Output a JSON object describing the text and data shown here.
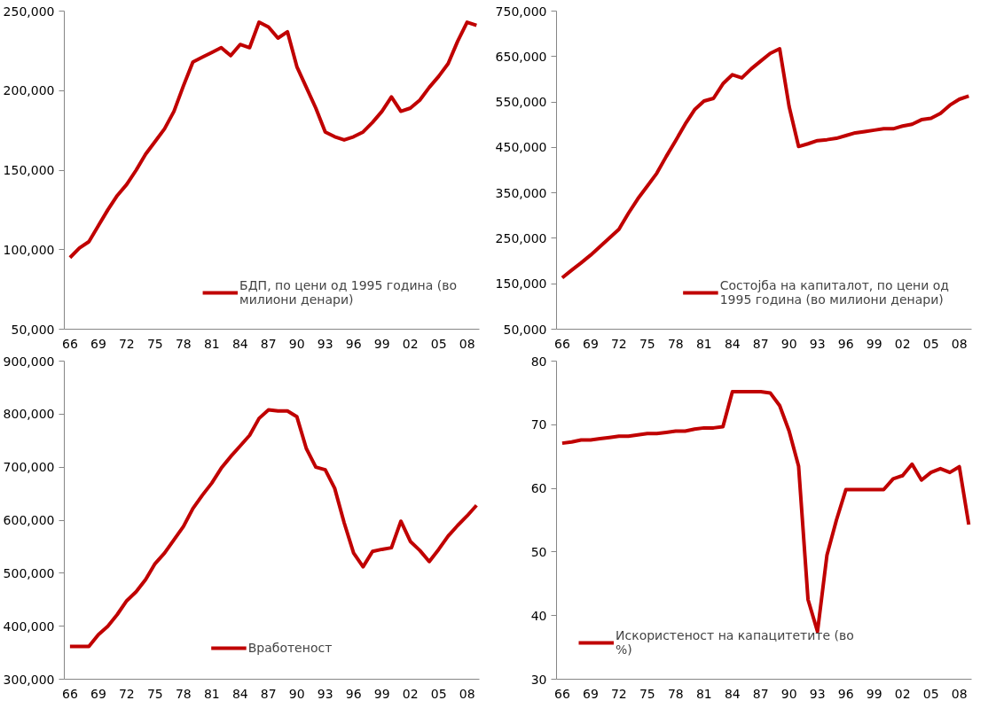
{
  "chart_data": [
    {
      "type": "line",
      "categories": [
        "66",
        null,
        null,
        "69",
        null,
        null,
        "72",
        null,
        null,
        "75",
        null,
        null,
        "78",
        null,
        null,
        "81",
        null,
        null,
        "84",
        null,
        null,
        "87",
        null,
        null,
        "90",
        null,
        null,
        "93",
        null,
        null,
        "96",
        null,
        null,
        "99",
        null,
        null,
        "02",
        null,
        null,
        "05",
        null,
        null,
        "08",
        null
      ],
      "series": [
        {
          "name": "БДП, по цени од 1995 година (во милиони денари)",
          "color": "#c00000",
          "values": [
            95000,
            101000,
            105000,
            115000,
            125000,
            134000,
            141000,
            150000,
            160000,
            168000,
            176000,
            187000,
            203000,
            218000,
            221000,
            224000,
            227000,
            222000,
            229000,
            227000,
            243000,
            240000,
            233000,
            237000,
            215000,
            202000,
            189000,
            174000,
            171000,
            169000,
            171000,
            174000,
            180000,
            187000,
            196000,
            187000,
            189000,
            194000,
            202000,
            209000,
            217000,
            231000,
            243000,
            241000
          ]
        }
      ],
      "ylim": [
        50000,
        250000
      ],
      "yticks": [
        {
          "value": 50000,
          "label": "50,000"
        },
        {
          "value": 100000,
          "label": "100,000"
        },
        {
          "value": 150000,
          "label": "150,000"
        },
        {
          "value": 200000,
          "label": "200,000"
        },
        {
          "value": 250000,
          "label": "250,000"
        }
      ],
      "legend": "bottom right",
      "line_style": "solid"
    },
    {
      "type": "line",
      "categories": [
        "66",
        null,
        null,
        "69",
        null,
        null,
        "72",
        null,
        null,
        "75",
        null,
        null,
        "78",
        null,
        null,
        "81",
        null,
        null,
        "84",
        null,
        null,
        "87",
        null,
        null,
        "90",
        null,
        null,
        "93",
        null,
        null,
        "96",
        null,
        null,
        "99",
        null,
        null,
        "02",
        null,
        null,
        "05",
        null,
        null,
        "08",
        null
      ],
      "series": [
        {
          "name": "Состојба на капиталот, по цени од 1995 година (во милиони денари)",
          "color": "#c00000",
          "values": [
            163000,
            180000,
            196000,
            213000,
            232000,
            251000,
            270000,
            305000,
            337000,
            365000,
            393000,
            430000,
            465000,
            501000,
            533000,
            552000,
            558000,
            590000,
            610000,
            603000,
            623000,
            640000,
            657000,
            667000,
            540000,
            452000,
            458000,
            465000,
            467000,
            470000,
            476000,
            482000,
            485000,
            488000,
            491000,
            491000,
            497000,
            501000,
            511000,
            514000,
            525000,
            543000,
            556000,
            563000
          ]
        }
      ],
      "ylim": [
        50000,
        750000
      ],
      "yticks": [
        {
          "value": 50000,
          "label": "50,000"
        },
        {
          "value": 150000,
          "label": "150,000"
        },
        {
          "value": 250000,
          "label": "250,000"
        },
        {
          "value": 350000,
          "label": "350,000"
        },
        {
          "value": 450000,
          "label": "450,000"
        },
        {
          "value": 550000,
          "label": "550,000"
        },
        {
          "value": 650000,
          "label": "650,000"
        },
        {
          "value": 750000,
          "label": "750,000"
        }
      ],
      "legend": "bottom right",
      "line_style": "solid"
    },
    {
      "type": "line",
      "categories": [
        "66",
        null,
        null,
        "69",
        null,
        null,
        "72",
        null,
        null,
        "75",
        null,
        null,
        "78",
        null,
        null,
        "81",
        null,
        null,
        "84",
        null,
        null,
        "87",
        null,
        null,
        "90",
        null,
        null,
        "93",
        null,
        null,
        "96",
        null,
        null,
        "99",
        null,
        null,
        "02",
        null,
        null,
        "05",
        null,
        null,
        "08",
        null
      ],
      "series": [
        {
          "name": "Вработеност",
          "color": "#c00000",
          "values": [
            362000,
            362000,
            362000,
            384000,
            400000,
            422000,
            448000,
            465000,
            488000,
            518000,
            538000,
            563000,
            588000,
            622000,
            647000,
            670000,
            698000,
            720000,
            740000,
            760000,
            792000,
            808000,
            806000,
            806000,
            795000,
            735000,
            700000,
            695000,
            660000,
            595000,
            538000,
            512000,
            541000,
            545000,
            548000,
            598000,
            560000,
            543000,
            522000,
            545000,
            570000,
            590000,
            608000,
            628000
          ]
        }
      ],
      "ylim": [
        300000,
        900000
      ],
      "yticks": [
        {
          "value": 300000,
          "label": "300,000"
        },
        {
          "value": 400000,
          "label": "400,000"
        },
        {
          "value": 500000,
          "label": "500,000"
        },
        {
          "value": 600000,
          "label": "600,000"
        },
        {
          "value": 700000,
          "label": "700,000"
        },
        {
          "value": 800000,
          "label": "800,000"
        },
        {
          "value": 900000,
          "label": "900,000"
        }
      ],
      "legend": "bottom",
      "line_style": "solid"
    },
    {
      "type": "line",
      "categories": [
        "66",
        null,
        null,
        "69",
        null,
        null,
        "72",
        null,
        null,
        "75",
        null,
        null,
        "78",
        null,
        null,
        "81",
        null,
        null,
        "84",
        null,
        null,
        "87",
        null,
        null,
        "90",
        null,
        null,
        "93",
        null,
        null,
        "96",
        null,
        null,
        "99",
        null,
        null,
        "02",
        null,
        null,
        "05",
        null,
        null,
        "08",
        null
      ],
      "series": [
        {
          "name": "Искористеност на капацитетите (во %)",
          "color": "#c00000",
          "values": [
            67.1,
            67.3,
            67.6,
            67.6,
            67.8,
            68.0,
            68.2,
            68.2,
            68.4,
            68.6,
            68.6,
            68.8,
            69.0,
            69.0,
            69.3,
            69.5,
            69.5,
            69.7,
            75.2,
            75.2,
            75.2,
            75.2,
            75.0,
            73.0,
            69.0,
            63.5,
            42.5,
            37.5,
            49.5,
            55.0,
            59.8,
            59.8,
            59.8,
            59.8,
            59.8,
            61.5,
            62.0,
            63.8,
            61.3,
            62.5,
            63.1,
            62.5,
            63.4,
            54.3
          ]
        }
      ],
      "ylim": [
        30,
        80
      ],
      "yticks": [
        30,
        40,
        50,
        60,
        70,
        80
      ],
      "legend": "bottom left",
      "line_style": "solid"
    }
  ]
}
